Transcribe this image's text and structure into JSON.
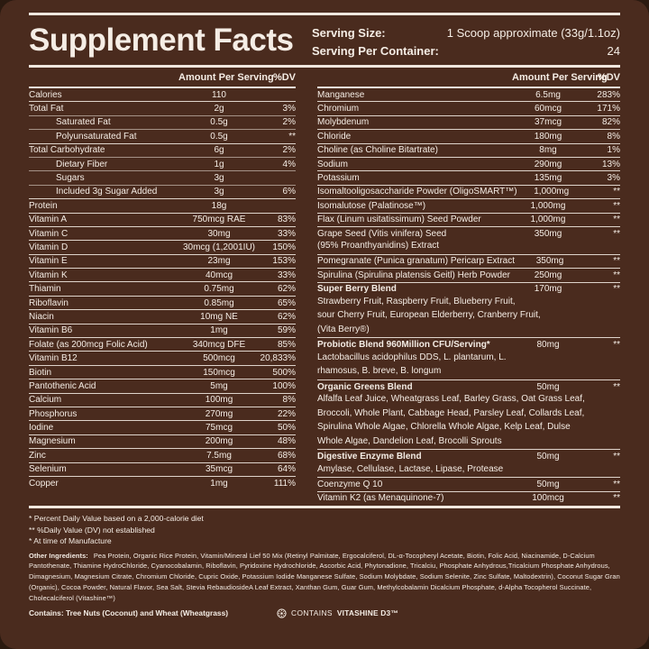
{
  "label": {
    "title": "Supplement Facts",
    "serving": {
      "size_label": "Serving Size:",
      "size_value": "1 Scoop approximate (33g/1.1oz)",
      "container_label": "Serving Per Container:",
      "container_value": "24"
    },
    "columns_header": {
      "amount": "Amount Per Serving",
      "dv": "%DV"
    },
    "left_rows": [
      {
        "name": "Calories",
        "amount": "110",
        "dv": "",
        "indent": false
      },
      {
        "name": "Total Fat",
        "amount": "2g",
        "dv": "3%",
        "indent": false
      },
      {
        "name": "Saturated Fat",
        "amount": "0.5g",
        "dv": "2%",
        "indent": true
      },
      {
        "name": "Polyunsaturated Fat",
        "amount": "0.5g",
        "dv": "**",
        "indent": true
      },
      {
        "name": "Total Carbohydrate",
        "amount": "6g",
        "dv": "2%",
        "indent": false
      },
      {
        "name": "Dietary Fiber",
        "amount": "1g",
        "dv": "4%",
        "indent": true
      },
      {
        "name": "Sugars",
        "amount": "3g",
        "dv": "",
        "indent": true
      },
      {
        "name": "Included 3g Sugar Added",
        "amount": "3g",
        "dv": "6%",
        "indent": true
      },
      {
        "name": "Protein",
        "amount": "18g",
        "dv": "",
        "indent": false
      },
      {
        "name": "Vitamin A",
        "amount": "750mcg RAE",
        "dv": "83%",
        "indent": false
      },
      {
        "name": "Vitamin C",
        "amount": "30mg",
        "dv": "33%",
        "indent": false
      },
      {
        "name": "Vitamin D",
        "amount": "30mcg (1,2001IU)",
        "dv": "150%",
        "indent": false
      },
      {
        "name": "Vitamin E",
        "amount": "23mg",
        "dv": "153%",
        "indent": false
      },
      {
        "name": "Vitamin K",
        "amount": "40mcg",
        "dv": "33%",
        "indent": false
      },
      {
        "name": "Thiamin",
        "amount": "0.75mg",
        "dv": "62%",
        "indent": false
      },
      {
        "name": "Riboflavin",
        "amount": "0.85mg",
        "dv": "65%",
        "indent": false
      },
      {
        "name": "Niacin",
        "amount": "10mg NE",
        "dv": "62%",
        "indent": false
      },
      {
        "name": "Vitamin B6",
        "amount": "1mg",
        "dv": "59%",
        "indent": false
      },
      {
        "name": "Folate (as 200mcg Folic Acid)",
        "amount": "340mcg DFE",
        "dv": "85%",
        "indent": false
      },
      {
        "name": "Vitamin B12",
        "amount": "500mcg",
        "dv": "20,833%",
        "indent": false
      },
      {
        "name": "Biotin",
        "amount": "150mcg",
        "dv": "500%",
        "indent": false
      },
      {
        "name": "Pantothenic Acid",
        "amount": "5mg",
        "dv": "100%",
        "indent": false
      },
      {
        "name": "Calcium",
        "amount": "100mg",
        "dv": "8%",
        "indent": false
      },
      {
        "name": "Phosphorus",
        "amount": "270mg",
        "dv": "22%",
        "indent": false
      },
      {
        "name": "Iodine",
        "amount": "75mcg",
        "dv": "50%",
        "indent": false
      },
      {
        "name": "Magnesium",
        "amount": "200mg",
        "dv": "48%",
        "indent": false
      },
      {
        "name": "Zinc",
        "amount": "7.5mg",
        "dv": "68%",
        "indent": false
      },
      {
        "name": "Selenium",
        "amount": "35mcg",
        "dv": "64%",
        "indent": false
      },
      {
        "name": "Copper",
        "amount": "1mg",
        "dv": "111%",
        "indent": false
      }
    ],
    "right_rows": [
      {
        "name": "Manganese",
        "amount": "6.5mg",
        "dv": "283%",
        "bold": false,
        "sub": []
      },
      {
        "name": "Chromium",
        "amount": "60mcg",
        "dv": "171%",
        "bold": false,
        "sub": []
      },
      {
        "name": "Molybdenum",
        "amount": "37mcg",
        "dv": "82%",
        "bold": false,
        "sub": []
      },
      {
        "name": "Chloride",
        "amount": "180mg",
        "dv": "8%",
        "bold": false,
        "sub": []
      },
      {
        "name": "Choline (as Choline Bitartrate)",
        "amount": "8mg",
        "dv": "1%",
        "bold": false,
        "sub": []
      },
      {
        "name": "Sodium",
        "amount": "290mg",
        "dv": "13%",
        "bold": false,
        "sub": []
      },
      {
        "name": "Potassium",
        "amount": "135mg",
        "dv": "3%",
        "bold": false,
        "sub": []
      },
      {
        "name": "Isomaltooligosaccharide Powder (OligoSMART™)",
        "amount": "1,000mg",
        "dv": "**",
        "bold": false,
        "sub": []
      },
      {
        "name": "Isomalutose (Palatinose™)",
        "amount": "1,000mg",
        "dv": "**",
        "bold": false,
        "sub": []
      },
      {
        "name": "Flax (Linum usitatissimum) Seed Powder",
        "amount": "1,000mg",
        "dv": "**",
        "bold": false,
        "sub": []
      },
      {
        "name": "Grape Seed (Vitis vinifera) Seed",
        "amount": "350mg",
        "dv": "**",
        "bold": false,
        "sub": [
          "(95% Proanthyanidins) Extract"
        ]
      },
      {
        "name": "Pomegranate (Punica granatum) Pericarp Extract",
        "amount": "350mg",
        "dv": "**",
        "bold": false,
        "sub": []
      },
      {
        "name": "Spirulina (Spirulina platensis Geitl) Herb Powder",
        "amount": "250mg",
        "dv": "**",
        "bold": false,
        "sub": []
      },
      {
        "name": "Super Berry Blend",
        "amount": "170mg",
        "dv": "**",
        "bold": true,
        "sub": [
          "Strawberry Fruit, Raspberry Fruit, Blueberry Fruit,",
          "sour Cherry Fruit, European Elderberry, Cranberry Fruit,",
          "(Vita Berry®)"
        ]
      },
      {
        "name": "Probiotic Blend 960Million CFU/Serving*",
        "amount": "80mg",
        "dv": "**",
        "bold": true,
        "sub": [
          "Lactobacillus acidophilus DDS, L. plantarum, L.",
          "rhamosus, B. breve, B. longum"
        ]
      },
      {
        "name": "Organic Greens Blend",
        "amount": "50mg",
        "dv": "**",
        "bold": true,
        "sub": [
          "Alfalfa Leaf Juice, Wheatgrass Leaf, Barley Grass, Oat Grass Leaf,",
          "Broccoli, Whole Plant, Cabbage Head, Parsley Leaf, Collards Leaf,",
          "Spirulina Whole Algae, Chlorella Whole Algae, Kelp Leaf, Dulse",
          "Whole Algae, Dandelion Leaf, Brocolli Sprouts"
        ]
      },
      {
        "name": "Digestive Enzyme Blend",
        "amount": "50mg",
        "dv": "**",
        "bold": true,
        "sub": [
          "Amylase, Cellulase, Lactase, Lipase, Protease"
        ]
      },
      {
        "name": "Coenzyme Q 10",
        "amount": "50mg",
        "dv": "**",
        "bold": false,
        "sub": []
      },
      {
        "name": "Vitamin K2 (as Menaquinone-7)",
        "amount": "100mcg",
        "dv": "**",
        "bold": false,
        "sub": []
      }
    ],
    "footnotes": [
      "* Percent Daily Value based on a 2,000-calorie diet",
      "** %Daily Value (DV) not established",
      "* At time of Manufacture"
    ],
    "other_ingredients": {
      "label": "Other Ingredients:",
      "text": "Pea Protein, Organic Rice Protein, Vitamin/Mineral Lief 50 Mix (Retinyl Palmitate, Ergocalciferol, DL-α-Tocopheryl Acetate, Biotin, Folic Acid, Niacinamide, D-Calcium Pantothenate, Thiamine HydroChloride, Cyanocobalamin, Riboflavin, Pyridoxine Hydrochloride, Ascorbic Acid, Phytonadione, Tricalciu, Phosphate Anhydrous,Tricalcium Phosphate Anhydrous, Dimagnesium, Magnesium Citrate, Chromium Chloride, Cupric Oxide, Potassium Iodide Manganese Sulfate, Sodium Molybdate, Sodium Selenite, Zinc Sulfate, Maltodextrin), Coconut Sugar Gran (Organic), Cocoa Powder, Natural Flavor, Sea Salt, Stevia RebaudiosideA Leaf Extract, Xanthan Gum, Guar Gum, Methylcobalamin Dicalcium Phosphate, d-Alpha Tocopherol Succinate, Cholecalciferol (Vitashine™)"
    },
    "contains_text": "Contains: Tree Nuts (Coconut) and Wheat (Wheatgrass)",
    "vitashine": {
      "prefix": "CONTAINS",
      "brand": "VITASHINE D3™"
    },
    "icons": {
      "vitashine_badge": "sun-badge-icon"
    },
    "colors": {
      "bg": "#2b1a10",
      "label": "#4a2b1e",
      "text": "#f5ede5",
      "line": "#f0e7de"
    }
  }
}
